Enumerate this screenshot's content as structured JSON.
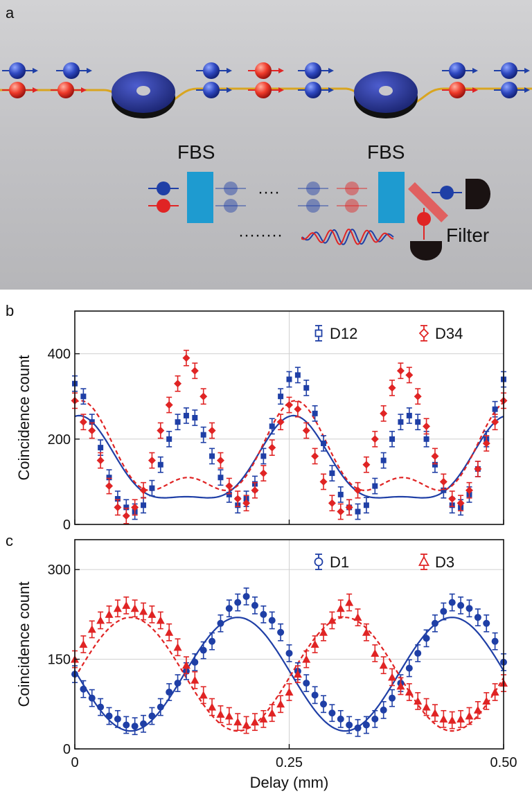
{
  "panel_labels": {
    "a": "a",
    "b": "b",
    "c": "c"
  },
  "schematic": {
    "fbs_label_1": "FBS",
    "fbs_label_2": "FBS",
    "filter_label": "Filter",
    "dots_upper": "····",
    "dots_lower": "········"
  },
  "colors": {
    "blue": "#1f3fa6",
    "red": "#e02424",
    "ring": "#2b3a9c",
    "fiber": "#d9a520",
    "fbs": "#1e9bd0",
    "filter": "#e06060",
    "detector": "#1a1212"
  },
  "chart_data": [
    {
      "type": "scatter",
      "panel": "b",
      "ylabel": "Coincidence count",
      "xlabel": "",
      "xlim": [
        0,
        0.5
      ],
      "ylim": [
        0,
        500
      ],
      "yticks": [
        0,
        200,
        400
      ],
      "xticks": [
        0,
        0.25,
        0.5
      ],
      "xtick_labels_shown": false,
      "grid": true,
      "legend": "top-right",
      "series": [
        {
          "name": "D12",
          "marker": "square",
          "color": "#1f3fa6",
          "fit": {
            "style": "solid",
            "A": 160,
            "B": 95,
            "C": 100,
            "phase": 0.005
          },
          "x": [
            0,
            0.01,
            0.02,
            0.03,
            0.04,
            0.05,
            0.06,
            0.07,
            0.08,
            0.09,
            0.1,
            0.11,
            0.12,
            0.13,
            0.14,
            0.15,
            0.16,
            0.17,
            0.18,
            0.19,
            0.2,
            0.21,
            0.22,
            0.23,
            0.24,
            0.25,
            0.26,
            0.27,
            0.28,
            0.29,
            0.3,
            0.31,
            0.32,
            0.33,
            0.34,
            0.35,
            0.36,
            0.37,
            0.38,
            0.39,
            0.4,
            0.41,
            0.42,
            0.43,
            0.44,
            0.45,
            0.46,
            0.47,
            0.48,
            0.49,
            0.5
          ],
          "y": [
            330,
            300,
            240,
            180,
            110,
            60,
            40,
            30,
            45,
            85,
            140,
            200,
            240,
            255,
            250,
            210,
            160,
            110,
            70,
            45,
            60,
            95,
            160,
            230,
            300,
            340,
            350,
            320,
            260,
            190,
            120,
            70,
            40,
            30,
            45,
            90,
            150,
            200,
            240,
            255,
            240,
            200,
            140,
            80,
            45,
            40,
            70,
            130,
            200,
            270,
            340
          ],
          "err": 18
        },
        {
          "name": "D34",
          "marker": "diamond",
          "color": "#e02424",
          "fit": {
            "style": "dashed",
            "A": 200,
            "B": 90,
            "C": 100,
            "phase": 0.007
          },
          "x": [
            0,
            0.01,
            0.02,
            0.03,
            0.04,
            0.05,
            0.06,
            0.07,
            0.08,
            0.09,
            0.1,
            0.11,
            0.12,
            0.13,
            0.14,
            0.15,
            0.16,
            0.17,
            0.18,
            0.19,
            0.2,
            0.21,
            0.22,
            0.23,
            0.24,
            0.25,
            0.26,
            0.27,
            0.28,
            0.29,
            0.3,
            0.31,
            0.32,
            0.33,
            0.34,
            0.35,
            0.36,
            0.37,
            0.38,
            0.39,
            0.4,
            0.41,
            0.42,
            0.43,
            0.44,
            0.45,
            0.46,
            0.47,
            0.48,
            0.49,
            0.5
          ],
          "y": [
            290,
            240,
            220,
            150,
            90,
            40,
            20,
            40,
            80,
            150,
            220,
            280,
            330,
            390,
            360,
            300,
            220,
            150,
            90,
            60,
            50,
            80,
            120,
            180,
            240,
            280,
            270,
            220,
            160,
            100,
            50,
            30,
            40,
            80,
            140,
            200,
            260,
            320,
            360,
            350,
            300,
            230,
            160,
            100,
            60,
            50,
            80,
            130,
            190,
            240,
            290
          ],
          "err": 18
        }
      ]
    },
    {
      "type": "scatter",
      "panel": "c",
      "ylabel": "Coincidence count",
      "xlabel": "Delay (mm)",
      "xlim": [
        0,
        0.5
      ],
      "ylim": [
        0,
        350
      ],
      "yticks": [
        0,
        150,
        300
      ],
      "xticks": [
        0,
        0.25,
        0.5
      ],
      "xtick_labels": [
        "0",
        "0.25",
        "0.50"
      ],
      "grid": true,
      "legend": "top-right",
      "series": [
        {
          "name": "D1",
          "marker": "circle",
          "color": "#1f3fa6",
          "fit": {
            "style": "solid",
            "A": 135,
            "B": 95,
            "C": 125,
            "phase": 0.19
          },
          "x": [
            0,
            0.01,
            0.02,
            0.03,
            0.04,
            0.05,
            0.06,
            0.07,
            0.08,
            0.09,
            0.1,
            0.11,
            0.12,
            0.13,
            0.14,
            0.15,
            0.16,
            0.17,
            0.18,
            0.19,
            0.2,
            0.21,
            0.22,
            0.23,
            0.24,
            0.25,
            0.26,
            0.27,
            0.28,
            0.29,
            0.3,
            0.31,
            0.32,
            0.33,
            0.34,
            0.35,
            0.36,
            0.37,
            0.38,
            0.39,
            0.4,
            0.41,
            0.42,
            0.43,
            0.44,
            0.45,
            0.46,
            0.47,
            0.48,
            0.49,
            0.5
          ],
          "y": [
            125,
            100,
            85,
            70,
            55,
            50,
            40,
            38,
            42,
            55,
            70,
            95,
            110,
            130,
            145,
            165,
            180,
            210,
            235,
            245,
            255,
            240,
            225,
            215,
            195,
            160,
            130,
            110,
            90,
            75,
            60,
            50,
            40,
            35,
            40,
            50,
            65,
            85,
            110,
            135,
            160,
            185,
            210,
            230,
            245,
            240,
            235,
            220,
            210,
            180,
            145
          ],
          "err": 14
        },
        {
          "name": "D3",
          "marker": "triangle",
          "color": "#e02424",
          "fit": {
            "style": "dashed",
            "A": 135,
            "B": 95,
            "C": 125,
            "phase": 0.065
          },
          "x": [
            0,
            0.01,
            0.02,
            0.03,
            0.04,
            0.05,
            0.06,
            0.07,
            0.08,
            0.09,
            0.1,
            0.11,
            0.12,
            0.13,
            0.14,
            0.15,
            0.16,
            0.17,
            0.18,
            0.19,
            0.2,
            0.21,
            0.22,
            0.23,
            0.24,
            0.25,
            0.26,
            0.27,
            0.28,
            0.29,
            0.3,
            0.31,
            0.32,
            0.33,
            0.34,
            0.35,
            0.36,
            0.37,
            0.38,
            0.39,
            0.4,
            0.41,
            0.42,
            0.43,
            0.44,
            0.45,
            0.46,
            0.47,
            0.48,
            0.49,
            0.5
          ],
          "y": [
            150,
            175,
            200,
            215,
            225,
            235,
            240,
            235,
            230,
            225,
            215,
            195,
            170,
            140,
            115,
            90,
            70,
            58,
            55,
            45,
            40,
            45,
            50,
            60,
            75,
            95,
            125,
            150,
            175,
            195,
            215,
            235,
            245,
            220,
            195,
            160,
            140,
            120,
            105,
            95,
            80,
            70,
            60,
            50,
            48,
            50,
            55,
            65,
            80,
            95,
            110
          ],
          "err": 14
        }
      ]
    }
  ]
}
